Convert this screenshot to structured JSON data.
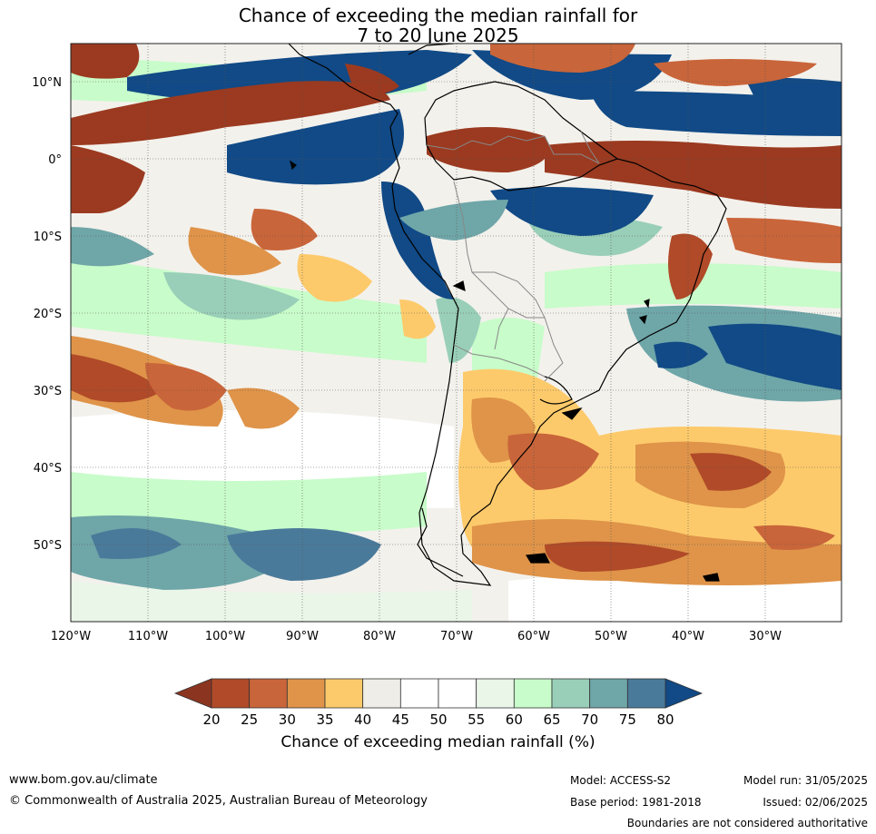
{
  "title_line1": "Chance of exceeding the median rainfall for",
  "title_line2": "7 to 20 June 2025",
  "lat_labels": [
    "10°N",
    "0°",
    "10°S",
    "20°S",
    "30°S",
    "40°S",
    "50°S"
  ],
  "lon_labels": [
    "120°W",
    "110°W",
    "100°W",
    "90°W",
    "80°W",
    "70°W",
    "60°W",
    "50°W",
    "40°W",
    "30°W"
  ],
  "colorbar": {
    "ticks": [
      "20",
      "25",
      "30",
      "35",
      "40",
      "45",
      "50",
      "55",
      "60",
      "65",
      "70",
      "75",
      "80"
    ],
    "colors": [
      "#9b3a20",
      "#b04a28",
      "#c9653a",
      "#df9449",
      "#fdca6b",
      "#efede7",
      "#ffffff",
      "#ffffff",
      "#e9f6e8",
      "#c8fcca",
      "#99cfb8",
      "#6fa6a8",
      "#4a7a9a",
      "#114a86"
    ],
    "under_color": "#8b3520",
    "over_color": "#114a86",
    "label": "Chance of exceeding median rainfall (%)"
  },
  "footer": {
    "website": "www.bom.gov.au/climate",
    "copyright": "© Commonwealth of Australia 2025, Australian Bureau of Meteorology",
    "model": "Model: ACCESS-S2",
    "base_period": "Base period: 1981-2018",
    "model_run": "Model run: 31/05/2025",
    "issued": "Issued: 02/06/2025",
    "boundaries": "Boundaries are not considered authoritative"
  }
}
